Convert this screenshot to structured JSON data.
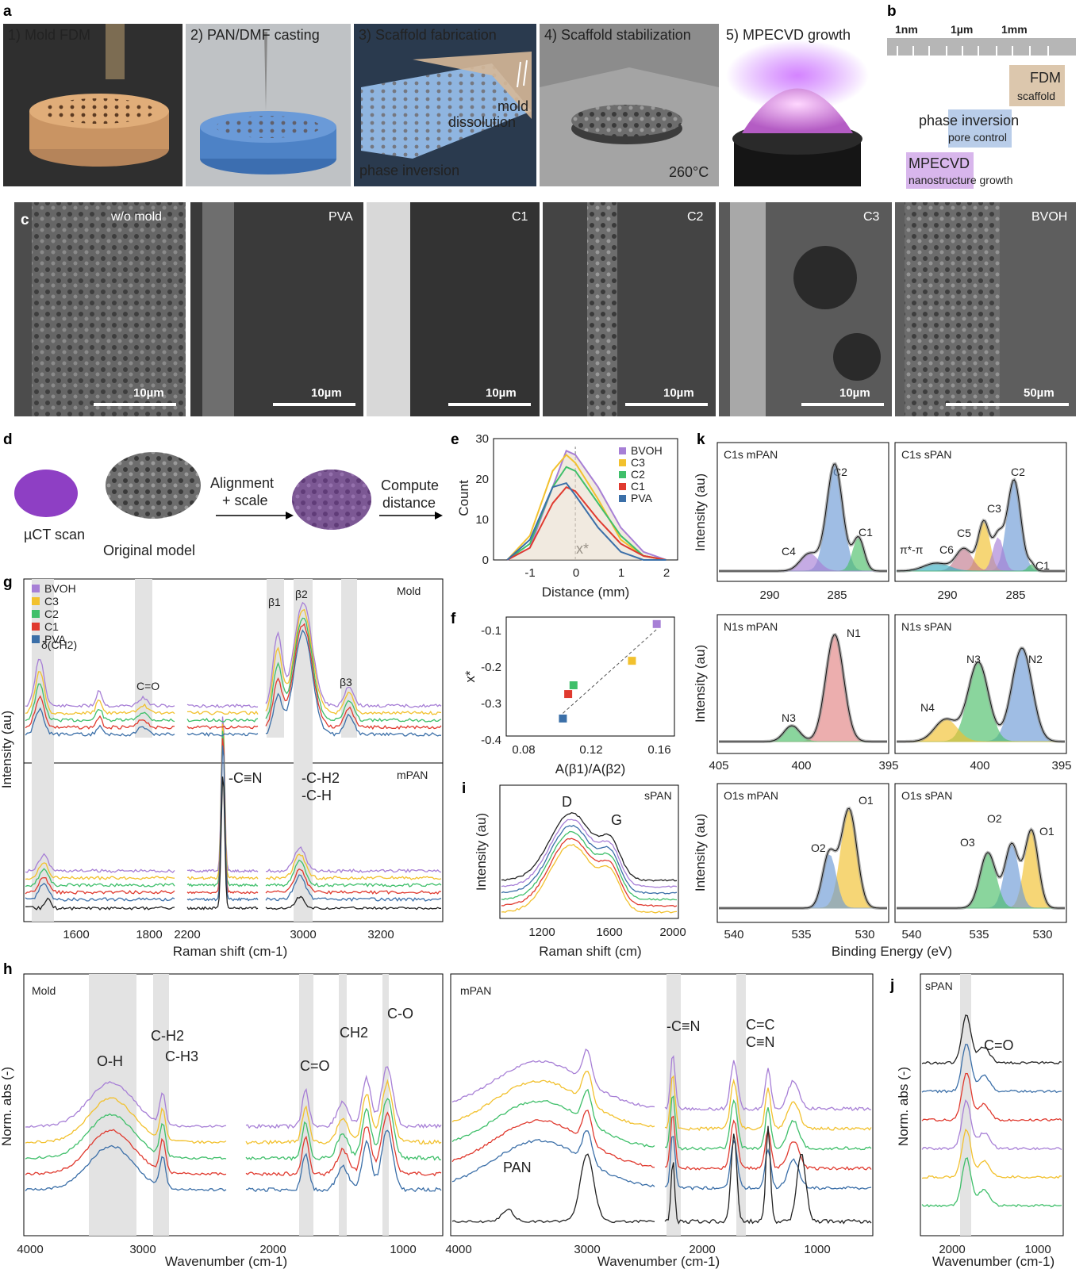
{
  "panel_letters": [
    "a",
    "b",
    "c",
    "d",
    "e",
    "f",
    "g",
    "h",
    "i",
    "j",
    "k"
  ],
  "a": {
    "steps": [
      "1) Mold FDM",
      "2) PAN/DMF casting",
      "3) Scaffold fabrication",
      "4) Scaffold stabilization",
      "5) MPECVD growth"
    ],
    "step3_mold": "mold",
    "step3_dissolution": "dissolution",
    "step3_phase": "phase inversion",
    "step4_temp": "260°C"
  },
  "b": {
    "scale": [
      "1nm",
      "1µm",
      "1mm"
    ],
    "fdm_title": "FDM",
    "fdm_sub": "scaffold",
    "pi_title": "phase inversion",
    "pi_sub": "pore control",
    "mp_title": "MPECVD",
    "mp_sub": "nanostructure growth"
  },
  "c": {
    "labels": [
      "w/o mold",
      "PVA",
      "C1",
      "C2",
      "C3",
      "BVOH"
    ],
    "scales": [
      "10µm",
      "10µm",
      "10µm",
      "10µm",
      "10µm",
      "50µm"
    ]
  },
  "d": {
    "scan": "µCT scan",
    "model": "Original model",
    "align1": "Alignment",
    "align2": "+ scale",
    "compute1": "Compute",
    "compute2": "distance"
  },
  "e": {
    "ylabel": "Count",
    "xlabel": "Distance (mm)",
    "xstar": "x*",
    "xticks": [
      "-1",
      "0",
      "1",
      "2"
    ],
    "yticks": [
      "0",
      "10",
      "20",
      "30"
    ]
  },
  "f": {
    "ylabel": "x*",
    "xlabel": "A(β1)/A(β2)",
    "xticks": [
      "0.08",
      "0.12",
      "0.16"
    ],
    "yticks": [
      "-0.1",
      "-0.2",
      "-0.3",
      "-0.4"
    ]
  },
  "g": {
    "ylabel": "Intensity (au)",
    "xlabel": "Raman shift (cm-1)",
    "mold": "Mold",
    "mpan": "mPAN",
    "ann": [
      "δ(CH2)",
      "C=O",
      "β1",
      "β2",
      "β3",
      "-C≡N",
      "-C-H2",
      "-C-H"
    ],
    "xticks": [
      "1600",
      "1800",
      "2200",
      "3000",
      "3200"
    ]
  },
  "h": {
    "ylabel": "Norm. abs (-)",
    "xlabel": "Wavenumber (cm-1)",
    "mold": "Mold",
    "mpan": "mPAN",
    "pan": "PAN",
    "ann": [
      "O-H",
      "C-H2",
      "C-H3",
      "C=O",
      "CH2",
      "C-O",
      "-C≡N",
      "C=C",
      "C≡N"
    ],
    "xticks_left": [
      "4000",
      "3000",
      "2000",
      "1000"
    ],
    "xticks_right": [
      "4000",
      "3000",
      "2000",
      "1000"
    ]
  },
  "i": {
    "ylabel": "Intensity (au)",
    "xlabel": "Raman shift (cm)",
    "tag": "sPAN",
    "d": "D",
    "g": "G",
    "xticks": [
      "1200",
      "1600",
      "2000"
    ]
  },
  "j": {
    "ylabel": "Norm. abs (-)",
    "xlabel": "Wavenumber (cm-1)",
    "tag": "sPAN",
    "co": "C=O",
    "xticks": [
      "2000",
      "1000"
    ]
  },
  "k": {
    "ylabel": "Intensity (au)",
    "xlabel": "Binding Energy (eV)",
    "titles": [
      "C1s mPAN",
      "C1s sPAN",
      "N1s mPAN",
      "N1s sPAN",
      "O1s mPAN",
      "O1s sPAN"
    ],
    "peaks_c_m": [
      "C2",
      "C1",
      "C4"
    ],
    "peaks_c_s": [
      "C2",
      "C3",
      "C5",
      "C6",
      "π*-π",
      "C1"
    ],
    "peaks_n_m": [
      "N1",
      "N3"
    ],
    "peaks_n_s": [
      "N3",
      "N2",
      "N4"
    ],
    "peaks_o_m": [
      "O1",
      "O2"
    ],
    "peaks_o_s": [
      "O2",
      "O1",
      "O3"
    ],
    "xticks_c": [
      "290",
      "285"
    ],
    "xticks_n": [
      "405",
      "400",
      "395"
    ],
    "xticks_o": [
      "540",
      "535",
      "530"
    ]
  },
  "legend": [
    "BVOH",
    "C3",
    "C2",
    "C1",
    "PVA"
  ],
  "colors": {
    "BVOH": "#a77fd6",
    "C3": "#f2c12e",
    "C2": "#3fbf6a",
    "C1": "#e03a2f",
    "PVA": "#3b6fa8",
    "PAN": "#222222"
  },
  "chart_data": [
    {
      "type": "line",
      "panel": "e",
      "x": [
        -1.5,
        -1,
        -0.5,
        -0.2,
        0,
        0.5,
        1,
        1.5,
        2
      ],
      "series": [
        {
          "name": "BVOH",
          "values": [
            0,
            3,
            18,
            27,
            26,
            18,
            8,
            2,
            0
          ]
        },
        {
          "name": "C3",
          "values": [
            0,
            6,
            22,
            26,
            24,
            15,
            5,
            1,
            0
          ]
        },
        {
          "name": "C2",
          "values": [
            0,
            4,
            18,
            23,
            22,
            14,
            6,
            1,
            0
          ]
        },
        {
          "name": "C1",
          "values": [
            0,
            3,
            14,
            18,
            17,
            10,
            4,
            1,
            0
          ]
        },
        {
          "name": "PVA",
          "values": [
            0,
            5,
            18,
            19,
            16,
            8,
            2,
            0,
            0
          ]
        }
      ],
      "xlabel": "Distance (mm)",
      "ylabel": "Count",
      "ylim": [
        0,
        30
      ]
    },
    {
      "type": "scatter",
      "panel": "f",
      "points": [
        {
          "name": "BVOH",
          "x": 0.155,
          "y": -0.09
        },
        {
          "name": "C3",
          "x": 0.141,
          "y": -0.195
        },
        {
          "name": "C2",
          "x": 0.108,
          "y": -0.265
        },
        {
          "name": "C1",
          "x": 0.105,
          "y": -0.29
        },
        {
          "name": "PVA",
          "x": 0.102,
          "y": -0.36
        }
      ],
      "xlabel": "A(β1)/A(β2)",
      "ylabel": "x*",
      "xlim": [
        0.08,
        0.16
      ],
      "ylim": [
        -0.4,
        -0.1
      ]
    }
  ]
}
